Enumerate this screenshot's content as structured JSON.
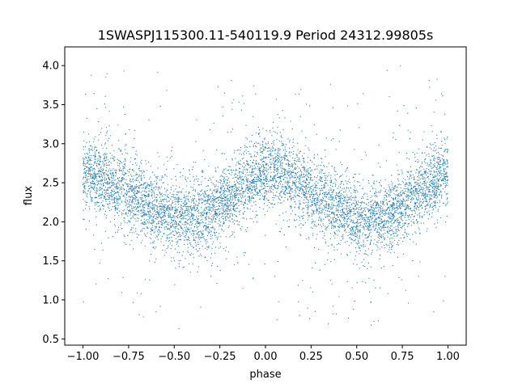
{
  "chart_data": {
    "type": "scatter",
    "title": "1SWASPJ115300.11-540119.9 Period 24312.99805s",
    "xlabel": "phase",
    "ylabel": "flux",
    "xlim": [
      -1.1,
      1.1
    ],
    "ylim": [
      0.42,
      4.24
    ],
    "xticks": [
      -1.0,
      -0.75,
      -0.5,
      -0.25,
      0.0,
      0.25,
      0.5,
      0.75,
      1.0
    ],
    "xtick_labels": [
      "−1.00",
      "−0.75",
      "−0.50",
      "−0.25",
      "0.00",
      "0.25",
      "0.50",
      "0.75",
      "1.00"
    ],
    "yticks": [
      0.5,
      1.0,
      1.5,
      2.0,
      2.5,
      3.0,
      3.5,
      4.0
    ],
    "ytick_labels": [
      "0.5",
      "1.0",
      "1.5",
      "2.0",
      "2.5",
      "3.0",
      "3.5",
      "4.0"
    ],
    "grid": false,
    "marker_color": "#1f77b4",
    "phase_range": [
      -1.0,
      1.0
    ],
    "series": [
      {
        "curve_phase": [
          -1.0,
          -0.9,
          -0.8,
          -0.7,
          -0.6,
          -0.5,
          -0.45,
          -0.4,
          -0.3,
          -0.2,
          -0.1,
          0.0,
          0.05,
          0.1,
          0.2,
          0.3,
          0.4,
          0.5,
          0.55,
          0.6,
          0.7,
          0.8,
          0.9,
          1.0
        ],
        "curve_flux": [
          2.65,
          2.55,
          2.42,
          2.3,
          2.17,
          2.07,
          2.05,
          2.04,
          2.12,
          2.3,
          2.5,
          2.65,
          2.67,
          2.6,
          2.45,
          2.3,
          2.15,
          2.05,
          2.03,
          2.04,
          2.12,
          2.3,
          2.5,
          2.65
        ],
        "scatter_sigma": 0.22,
        "outlier_range": [
          0.6,
          4.0
        ]
      }
    ]
  }
}
